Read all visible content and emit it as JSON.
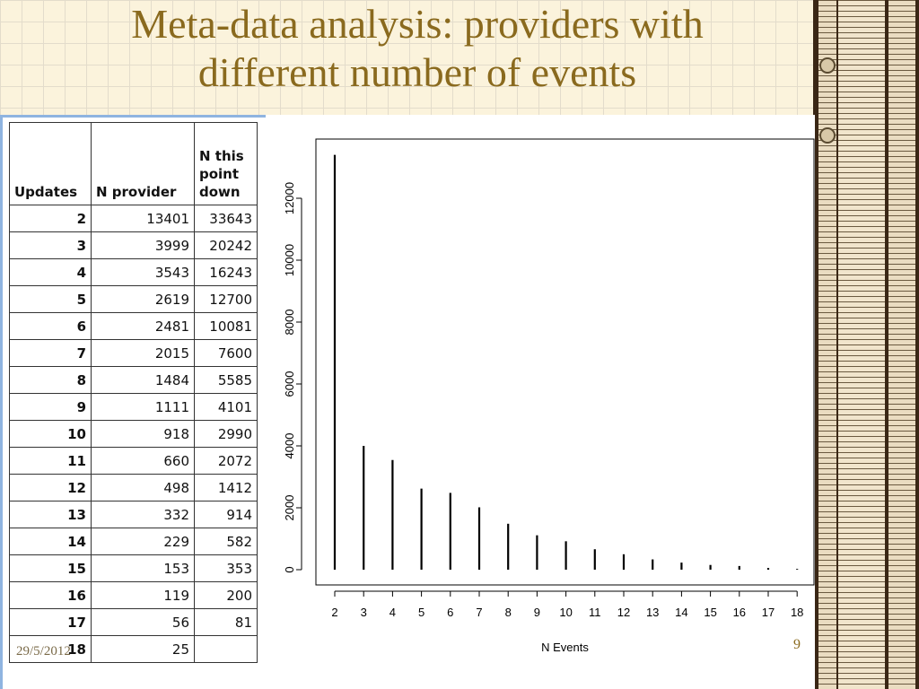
{
  "slide": {
    "title_line1": "Meta-data analysis: providers with",
    "title_line2": "different number of events",
    "date": "29/5/2012",
    "page_number": "9"
  },
  "table": {
    "headers": [
      "Updates",
      "N provider",
      "N this point down"
    ],
    "rows": [
      [
        "2",
        "13401",
        "33643"
      ],
      [
        "3",
        "3999",
        "20242"
      ],
      [
        "4",
        "3543",
        "16243"
      ],
      [
        "5",
        "2619",
        "12700"
      ],
      [
        "6",
        "2481",
        "10081"
      ],
      [
        "7",
        "2015",
        "7600"
      ],
      [
        "8",
        "1484",
        "5585"
      ],
      [
        "9",
        "1111",
        "4101"
      ],
      [
        "10",
        "918",
        "2990"
      ],
      [
        "11",
        "660",
        "2072"
      ],
      [
        "12",
        "498",
        "1412"
      ],
      [
        "13",
        "332",
        "914"
      ],
      [
        "14",
        "229",
        "582"
      ],
      [
        "15",
        "153",
        "353"
      ],
      [
        "16",
        "119",
        "200"
      ],
      [
        "17",
        "56",
        "81"
      ],
      [
        "18",
        "25",
        ""
      ]
    ]
  },
  "chart_data": {
    "type": "bar",
    "title": "",
    "xlabel": "N Events",
    "ylabel": "",
    "categories": [
      "2",
      "3",
      "4",
      "5",
      "6",
      "7",
      "8",
      "9",
      "10",
      "11",
      "12",
      "13",
      "14",
      "15",
      "16",
      "17",
      "18"
    ],
    "values": [
      13401,
      3999,
      3543,
      2619,
      2481,
      2015,
      1484,
      1111,
      918,
      660,
      498,
      332,
      229,
      153,
      119,
      56,
      25
    ],
    "yticks": [
      0,
      2000,
      4000,
      6000,
      8000,
      10000,
      12000
    ],
    "ylim": [
      0,
      13401
    ],
    "grid": false,
    "bar_color": "#000000"
  }
}
